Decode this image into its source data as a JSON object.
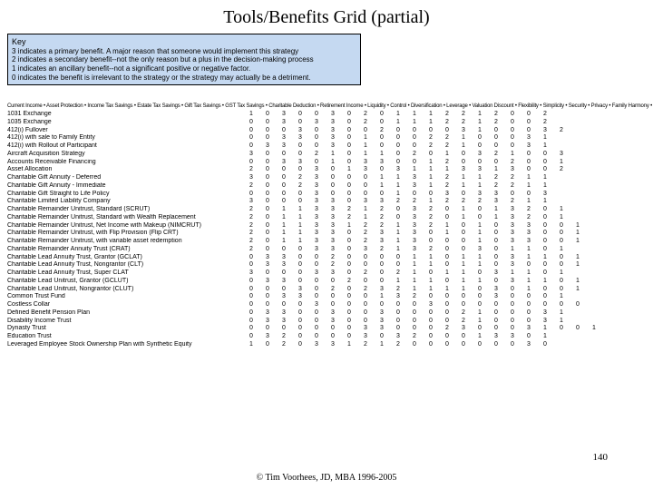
{
  "title": "Tools/Benefits Grid (partial)",
  "key": {
    "heading": "Key",
    "lines": [
      "3  indicates a primary benefit.  A major reason that someone would implement this strategy",
      "2  indicates a secondary benefit--not the only reason but a plus in the decision-making process",
      "1  indicates an ancillary benefit--not a significant positive or negative factor.",
      "0  indicates the benefit is irrelevant to the strategy or the strategy may actually be a detriment."
    ]
  },
  "columns_header": "Current Income • Asset Protection • Income Tax Savings • Estate Tax Savings • Gift Tax Savings • GST Tax Savings • Charitable Deduction • Retirement Income • Liquidity • Control • Diversification • Leverage • Valuation Discount • Flexibility • Simplicity • Security • Privacy • Family Harmony • Education Funding • Charitable Legacy • Planning Certainty • Cost Efficiency",
  "rows": [
    {
      "label": "1031 Exchange",
      "cells": [
        "1",
        "0",
        "3",
        "0",
        "0",
        "3",
        "0",
        "2",
        "0",
        "1",
        "1",
        "1",
        "2",
        "2",
        "1",
        "2",
        "0",
        "0",
        "2"
      ]
    },
    {
      "label": "1035 Exchange",
      "cells": [
        "0",
        "0",
        "3",
        "0",
        "3",
        "3",
        "0",
        "2",
        "0",
        "1",
        "1",
        "1",
        "2",
        "2",
        "1",
        "2",
        "0",
        "0",
        "2"
      ]
    },
    {
      "label": "412(i) Fullover",
      "cells": [
        "0",
        "0",
        "0",
        "3",
        "0",
        "3",
        "0",
        "0",
        "2",
        "0",
        "0",
        "0",
        "0",
        "3",
        "1",
        "0",
        "0",
        "0",
        "3",
        "2"
      ]
    },
    {
      "label": "412(i) with sale to Family Entity",
      "cells": [
        "0",
        "0",
        "3",
        "3",
        "0",
        "3",
        "0",
        "1",
        "0",
        "0",
        "0",
        "2",
        "2",
        "1",
        "0",
        "0",
        "0",
        "3",
        "1"
      ]
    },
    {
      "label": "412(i) with Rollout of Participant",
      "cells": [
        "0",
        "3",
        "3",
        "0",
        "0",
        "3",
        "0",
        "1",
        "0",
        "0",
        "0",
        "2",
        "2",
        "1",
        "0",
        "0",
        "0",
        "3",
        "1"
      ]
    },
    {
      "label": "Aircraft Acquisition Strategy",
      "cells": [
        "3",
        "0",
        "0",
        "0",
        "2",
        "1",
        "0",
        "1",
        "1",
        "0",
        "2",
        "0",
        "1",
        "0",
        "3",
        "2",
        "1",
        "0",
        "0",
        "3"
      ]
    },
    {
      "label": "Accounts Receivable Financing",
      "cells": [
        "0",
        "0",
        "3",
        "3",
        "0",
        "1",
        "0",
        "3",
        "3",
        "0",
        "0",
        "1",
        "2",
        "0",
        "0",
        "0",
        "2",
        "0",
        "0",
        "1"
      ]
    },
    {
      "label": "Asset Allocation",
      "cells": [
        "2",
        "0",
        "0",
        "0",
        "3",
        "0",
        "1",
        "3",
        "0",
        "3",
        "1",
        "1",
        "1",
        "3",
        "3",
        "1",
        "3",
        "0",
        "0",
        "2"
      ]
    },
    {
      "label": "Charitable Gift Annuity - Deferred",
      "cells": [
        "3",
        "0",
        "0",
        "2",
        "3",
        "0",
        "0",
        "0",
        "1",
        "1",
        "3",
        "1",
        "2",
        "1",
        "1",
        "2",
        "2",
        "1",
        "1"
      ]
    },
    {
      "label": "Charitable Gift Annuity - Immediate",
      "cells": [
        "2",
        "0",
        "0",
        "2",
        "3",
        "0",
        "0",
        "0",
        "1",
        "1",
        "3",
        "1",
        "2",
        "1",
        "1",
        "2",
        "2",
        "1",
        "1"
      ]
    },
    {
      "label": "Charitable Gift Straight to Life Policy",
      "cells": [
        "0",
        "0",
        "0",
        "0",
        "3",
        "0",
        "0",
        "0",
        "0",
        "1",
        "0",
        "0",
        "3",
        "0",
        "3",
        "3",
        "0",
        "0",
        "3"
      ]
    },
    {
      "label": "Charitable Limited Liability Company",
      "cells": [
        "3",
        "0",
        "0",
        "0",
        "3",
        "3",
        "0",
        "3",
        "3",
        "2",
        "2",
        "1",
        "2",
        "2",
        "2",
        "3",
        "2",
        "1",
        "1"
      ]
    },
    {
      "label": "Charitable Remainder Unitrust, Standard (SCRUT)",
      "cells": [
        "2",
        "0",
        "1",
        "1",
        "3",
        "3",
        "2",
        "1",
        "2",
        "0",
        "3",
        "2",
        "0",
        "1",
        "0",
        "1",
        "3",
        "2",
        "0",
        "1"
      ]
    },
    {
      "label": "Charitable Remainder Unitrust, Standard with Wealth Replacement",
      "cells": [
        "2",
        "0",
        "1",
        "1",
        "3",
        "3",
        "2",
        "1",
        "2",
        "0",
        "3",
        "2",
        "0",
        "1",
        "0",
        "1",
        "3",
        "2",
        "0",
        "1"
      ]
    },
    {
      "label": "Charitable Remainder Unitrust, Net Income with Makeup (NIMCRUT)",
      "cells": [
        "2",
        "0",
        "1",
        "1",
        "3",
        "3",
        "1",
        "2",
        "2",
        "1",
        "3",
        "2",
        "1",
        "0",
        "1",
        "0",
        "3",
        "3",
        "0",
        "0",
        "1"
      ]
    },
    {
      "label": "Charitable Remainder Unitrust, with Flip Provision (Flip CRT)",
      "cells": [
        "2",
        "0",
        "1",
        "1",
        "3",
        "3",
        "0",
        "2",
        "3",
        "1",
        "3",
        "0",
        "1",
        "0",
        "1",
        "0",
        "3",
        "3",
        "0",
        "0",
        "1"
      ]
    },
    {
      "label": "Charitable Remainder Unitrust, with variable asset redemption",
      "cells": [
        "2",
        "0",
        "1",
        "1",
        "3",
        "3",
        "0",
        "2",
        "3",
        "1",
        "3",
        "0",
        "0",
        "0",
        "1",
        "0",
        "3",
        "3",
        "0",
        "0",
        "1"
      ]
    },
    {
      "label": "Charitable Remainder Annuity Trust (CRAT)",
      "cells": [
        "2",
        "0",
        "0",
        "0",
        "3",
        "3",
        "0",
        "3",
        "2",
        "1",
        "3",
        "2",
        "0",
        "0",
        "3",
        "0",
        "1",
        "1",
        "0",
        "1"
      ]
    },
    {
      "label": "Charitable Lead Annuity Trust, Grantor (GCLAT)",
      "cells": [
        "0",
        "3",
        "3",
        "0",
        "0",
        "2",
        "0",
        "0",
        "0",
        "0",
        "1",
        "1",
        "0",
        "1",
        "1",
        "0",
        "3",
        "1",
        "1",
        "0",
        "1"
      ]
    },
    {
      "label": "Charitable Lead Annuity Trust, Nongrantor (CLT)",
      "cells": [
        "0",
        "3",
        "3",
        "0",
        "0",
        "2",
        "0",
        "0",
        "0",
        "0",
        "1",
        "1",
        "0",
        "1",
        "1",
        "0",
        "3",
        "0",
        "0",
        "0",
        "1"
      ]
    },
    {
      "label": "Charitable Lead Annuity Trust, Super CLAT",
      "cells": [
        "3",
        "0",
        "0",
        "0",
        "3",
        "3",
        "0",
        "2",
        "0",
        "2",
        "1",
        "0",
        "1",
        "1",
        "0",
        "3",
        "1",
        "1",
        "0",
        "1"
      ]
    },
    {
      "label": "Charitable Lead Unitrust, Grantor (GCLUT)",
      "cells": [
        "0",
        "3",
        "3",
        "0",
        "0",
        "0",
        "2",
        "0",
        "0",
        "1",
        "1",
        "1",
        "0",
        "1",
        "1",
        "0",
        "3",
        "1",
        "1",
        "0",
        "1"
      ]
    },
    {
      "label": "Charitable Lead Unitrust, Nongrantor (CLUT)",
      "cells": [
        "0",
        "0",
        "0",
        "3",
        "0",
        "2",
        "0",
        "2",
        "3",
        "2",
        "1",
        "1",
        "1",
        "1",
        "0",
        "3",
        "0",
        "1",
        "0",
        "0",
        "1"
      ]
    },
    {
      "label": "Common Trust Fund",
      "cells": [
        "0",
        "0",
        "3",
        "3",
        "0",
        "0",
        "0",
        "0",
        "1",
        "3",
        "2",
        "0",
        "0",
        "0",
        "0",
        "3",
        "0",
        "0",
        "0",
        "1"
      ]
    },
    {
      "label": "Costless Collar",
      "cells": [
        "0",
        "0",
        "0",
        "0",
        "3",
        "0",
        "0",
        "0",
        "0",
        "0",
        "0",
        "3",
        "0",
        "0",
        "0",
        "0",
        "0",
        "0",
        "0",
        "0",
        "0"
      ]
    },
    {
      "label": "Defined Benefit Pension Plan",
      "cells": [
        "0",
        "3",
        "3",
        "0",
        "0",
        "3",
        "0",
        "0",
        "3",
        "0",
        "0",
        "0",
        "0",
        "2",
        "1",
        "0",
        "0",
        "0",
        "3",
        "1"
      ]
    },
    {
      "label": "Disability Income Trust",
      "cells": [
        "0",
        "3",
        "3",
        "0",
        "0",
        "3",
        "0",
        "0",
        "3",
        "0",
        "0",
        "0",
        "0",
        "2",
        "1",
        "0",
        "0",
        "0",
        "3",
        "1"
      ]
    },
    {
      "label": "Dynasty Trust",
      "cells": [
        "0",
        "0",
        "0",
        "0",
        "0",
        "0",
        "0",
        "3",
        "3",
        "0",
        "0",
        "0",
        "2",
        "3",
        "0",
        "0",
        "0",
        "3",
        "1",
        "0",
        "0",
        "1"
      ]
    },
    {
      "label": "Education Trust",
      "cells": [
        "0",
        "3",
        "2",
        "0",
        "0",
        "0",
        "0",
        "3",
        "0",
        "3",
        "2",
        "0",
        "0",
        "0",
        "1",
        "3",
        "3",
        "0",
        "1"
      ]
    },
    {
      "label": "Leveraged Employee Stock Ownership Plan with Synthetic Equity",
      "cells": [
        "1",
        "0",
        "2",
        "0",
        "3",
        "3",
        "1",
        "2",
        "1",
        "2",
        "0",
        "0",
        "0",
        "0",
        "0",
        "0",
        "0",
        "3",
        "0"
      ]
    }
  ],
  "footer": "© Tim Voorhees, JD, MBA 1996-2005",
  "page_num": "140",
  "colors": {
    "key_bg": "#c5d9f1",
    "page_bg": "#ffffff"
  }
}
